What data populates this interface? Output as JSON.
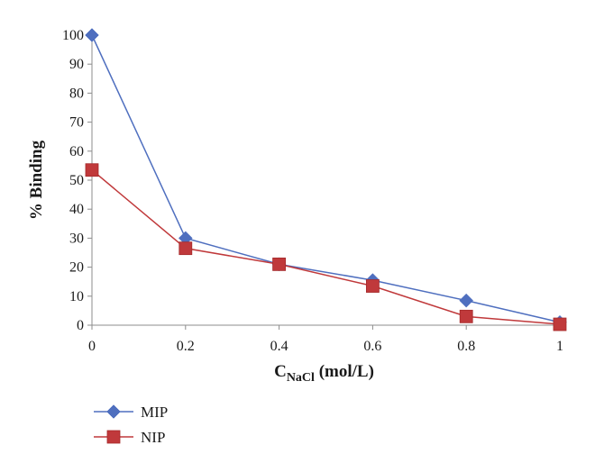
{
  "chart_data": {
    "type": "line",
    "x": [
      0,
      0.2,
      0.4,
      0.6,
      0.8,
      1
    ],
    "x_tick_labels": [
      "0",
      "0.2",
      "0.4",
      "0.6",
      "0.8",
      "1"
    ],
    "y_tick_labels": [
      "0",
      "10",
      "20",
      "30",
      "40",
      "50",
      "60",
      "70",
      "80",
      "90",
      "100"
    ],
    "xlim": [
      0,
      1
    ],
    "ylim": [
      0,
      100
    ],
    "xlabel": {
      "main": "C",
      "subscript": "NaCl",
      "unit": " (mol/L)"
    },
    "ylabel": "% Binding",
    "grid": false,
    "legend_position": "bottom-left",
    "series": [
      {
        "name": "MIP",
        "marker": "diamond",
        "color": "#4f6fbf",
        "values": [
          100,
          30,
          21,
          15.5,
          8.5,
          1
        ]
      },
      {
        "name": "NIP",
        "marker": "square",
        "color": "#c0393b",
        "values": [
          53.5,
          26.5,
          21,
          13.5,
          3,
          0.3
        ]
      }
    ]
  }
}
